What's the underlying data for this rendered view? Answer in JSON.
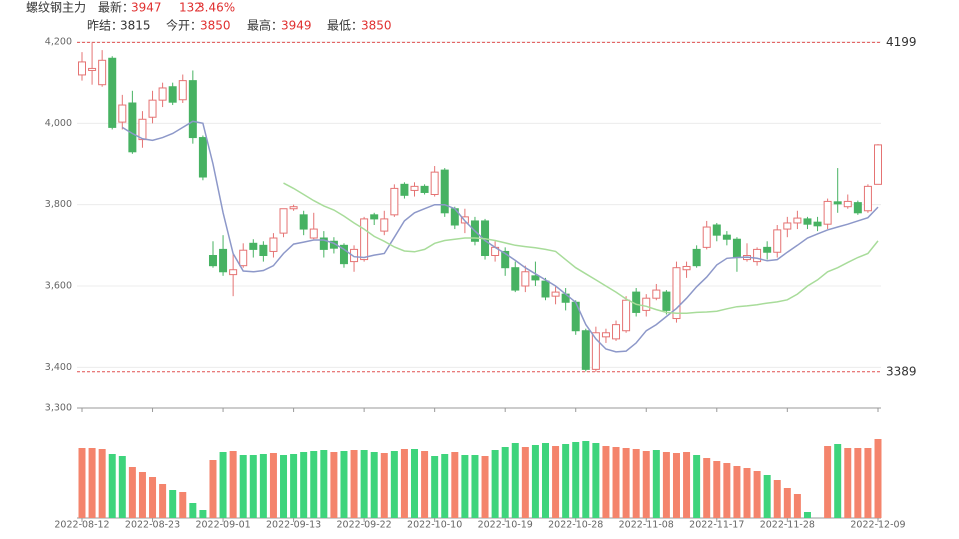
{
  "chart_data": {
    "type": "candlestick",
    "header": {
      "name": "螺纹钢主力",
      "latest_label": "最新：",
      "latest": 3947,
      "change": 132,
      "change_pct": {
        "value": 3.46,
        "label": "3.46%"
      },
      "prev_settle_label": "昨结：",
      "prev_settle": 3815,
      "open_label": "今开：",
      "open_today": 3850,
      "high_label": "最高：",
      "high_today": 3949,
      "low_label": "最低：",
      "low_today": 3850
    },
    "categories": [
      "2022-08-12",
      null,
      null,
      null,
      null,
      null,
      null,
      "2022-08-23",
      null,
      null,
      null,
      null,
      null,
      null,
      "2022-09-01",
      null,
      null,
      null,
      null,
      null,
      null,
      "2022-09-13",
      null,
      null,
      null,
      null,
      null,
      null,
      "2022-09-22",
      null,
      null,
      null,
      null,
      null,
      null,
      "2022-10-10",
      null,
      null,
      null,
      null,
      null,
      null,
      "2022-10-19",
      null,
      null,
      null,
      null,
      null,
      null,
      "2022-10-28",
      null,
      null,
      null,
      null,
      null,
      null,
      "2022-11-08",
      null,
      null,
      null,
      null,
      null,
      null,
      "2022-11-17",
      null,
      null,
      null,
      null,
      null,
      null,
      "2022-11-28",
      null,
      null,
      null,
      null,
      null,
      null,
      null,
      null,
      "2022-12-09"
    ],
    "open": [
      4119,
      4130,
      4095,
      4160,
      4003,
      4050,
      3960,
      4015,
      4057,
      4090,
      4058,
      4105,
      3965,
      3675,
      3690,
      3628,
      3650,
      3705,
      3700,
      3685,
      3730,
      3790,
      3775,
      3718,
      3718,
      3710,
      3700,
      3660,
      3665,
      3775,
      3735,
      3775,
      3850,
      3835,
      3845,
      3825,
      3885,
      3790,
      3755,
      3760,
      3760,
      3675,
      3685,
      3645,
      3600,
      3625,
      3612,
      3575,
      3580,
      3560,
      3490,
      3395,
      3475,
      3470,
      3490,
      3585,
      3540,
      3570,
      3585,
      3520,
      3640,
      3690,
      3695,
      3750,
      3725,
      3715,
      3665,
      3660,
      3695,
      3683,
      3740,
      3755,
      3765,
      3757,
      3752,
      3807,
      3795,
      3805,
      3785,
      3850
    ],
    "close": [
      4151,
      4135,
      4155,
      3990,
      4045,
      3930,
      4010,
      4057,
      4087,
      4052,
      4105,
      3965,
      3868,
      3650,
      3635,
      3640,
      3688,
      3690,
      3675,
      3718,
      3790,
      3795,
      3740,
      3740,
      3690,
      3693,
      3655,
      3690,
      3765,
      3765,
      3765,
      3840,
      3823,
      3845,
      3830,
      3880,
      3780,
      3750,
      3770,
      3710,
      3675,
      3695,
      3645,
      3590,
      3635,
      3615,
      3573,
      3585,
      3560,
      3490,
      3395,
      3485,
      3485,
      3505,
      3565,
      3535,
      3570,
      3590,
      3540,
      3645,
      3648,
      3650,
      3745,
      3725,
      3715,
      3670,
      3675,
      3690,
      3683,
      3738,
      3755,
      3767,
      3752,
      3748,
      3808,
      3802,
      3808,
      3780,
      3845,
      3947
    ],
    "high": [
      4175,
      4199,
      4180,
      4165,
      4070,
      4080,
      4030,
      4080,
      4100,
      4100,
      4120,
      4130,
      3970,
      3710,
      3725,
      3680,
      3705,
      3715,
      3710,
      3730,
      3790,
      3800,
      3785,
      3780,
      3735,
      3720,
      3705,
      3700,
      3770,
      3780,
      3785,
      3850,
      3855,
      3855,
      3850,
      3895,
      3890,
      3795,
      3790,
      3770,
      3765,
      3710,
      3695,
      3660,
      3650,
      3660,
      3620,
      3600,
      3595,
      3565,
      3495,
      3500,
      3495,
      3515,
      3575,
      3595,
      3580,
      3605,
      3590,
      3660,
      3660,
      3700,
      3760,
      3755,
      3735,
      3720,
      3705,
      3695,
      3710,
      3750,
      3770,
      3785,
      3770,
      3770,
      3815,
      3890,
      3825,
      3810,
      3850,
      3949
    ],
    "low": [
      4105,
      4095,
      4090,
      3985,
      3985,
      3925,
      3940,
      4000,
      4040,
      4045,
      4050,
      3950,
      3860,
      3645,
      3625,
      3575,
      3645,
      3670,
      3660,
      3670,
      3720,
      3785,
      3725,
      3715,
      3670,
      3680,
      3645,
      3635,
      3660,
      3750,
      3725,
      3770,
      3815,
      3820,
      3825,
      3820,
      3770,
      3740,
      3730,
      3700,
      3665,
      3660,
      3625,
      3585,
      3585,
      3600,
      3565,
      3555,
      3540,
      3480,
      3390,
      3389,
      3460,
      3465,
      3485,
      3525,
      3525,
      3565,
      3530,
      3510,
      3620,
      3645,
      3690,
      3710,
      3700,
      3635,
      3660,
      3650,
      3665,
      3670,
      3720,
      3740,
      3740,
      3735,
      3740,
      3780,
      3790,
      3775,
      3780,
      3850
    ],
    "up_color": "#e57373",
    "down_color": "#47b262",
    "ylim": [
      3300,
      4200
    ],
    "yticks": [
      {
        "value": 3300,
        "label": "3,300"
      },
      {
        "value": 3400,
        "label": "3,400"
      },
      {
        "value": 3600,
        "label": "3,600"
      },
      {
        "value": 3800,
        "label": "3,800"
      },
      {
        "value": 4000,
        "label": "4,000"
      },
      {
        "value": 4200,
        "label": "4,200"
      }
    ],
    "grid": true,
    "max_marker": 4199,
    "min_marker": 3389,
    "marker_color": "#e05050",
    "ma_series": [
      {
        "color": "#8d98c9",
        "values": [
          null,
          null,
          null,
          null,
          3990,
          3975,
          3962,
          3958,
          3965,
          3975,
          3990,
          4005,
          4000,
          3900,
          3780,
          3680,
          3637,
          3635,
          3638,
          3650,
          3680,
          3703,
          3708,
          3713,
          3713,
          3705,
          3690,
          3672,
          3670,
          3676,
          3680,
          3720,
          3760,
          3780,
          3790,
          3800,
          3800,
          3790,
          3760,
          3735,
          3712,
          3695,
          3680,
          3663,
          3645,
          3630,
          3615,
          3600,
          3580,
          3560,
          3505,
          3470,
          3445,
          3438,
          3440,
          3460,
          3490,
          3505,
          3525,
          3545,
          3570,
          3598,
          3622,
          3652,
          3668,
          3670,
          3671,
          3668,
          3662,
          3665,
          3683,
          3700,
          3718,
          3728,
          3738,
          3745,
          3752,
          3760,
          3768,
          3794
        ]
      },
      {
        "color": "#a8dc9a",
        "values": [
          null,
          null,
          null,
          null,
          null,
          null,
          null,
          null,
          null,
          null,
          null,
          null,
          null,
          null,
          null,
          null,
          null,
          null,
          null,
          null,
          3853,
          3840,
          3825,
          3810,
          3797,
          3787,
          3772,
          3755,
          3740,
          3722,
          3710,
          3696,
          3686,
          3684,
          3690,
          3705,
          3712,
          3715,
          3718,
          3718,
          3716,
          3712,
          3706,
          3700,
          3697,
          3694,
          3690,
          3685,
          3665,
          3645,
          3630,
          3615,
          3600,
          3585,
          3568,
          3555,
          3550,
          3542,
          3535,
          3533,
          3533,
          3535,
          3536,
          3538,
          3544,
          3549,
          3551,
          3554,
          3558,
          3561,
          3566,
          3580,
          3600,
          3615,
          3635,
          3645,
          3658,
          3670,
          3680,
          3711
        ]
      }
    ],
    "volume": {
      "ylim": [
        0,
        80
      ],
      "values": [
        70,
        70,
        69,
        64,
        62,
        51,
        46,
        41,
        34,
        28,
        26,
        15,
        8,
        58,
        66,
        67,
        63,
        63,
        64,
        65,
        63,
        64,
        66,
        67,
        68,
        66,
        67,
        68,
        68,
        66,
        65,
        67,
        69,
        69,
        67,
        62,
        64,
        66,
        63,
        63,
        62,
        68,
        71,
        75,
        71,
        73,
        75,
        72,
        74,
        76,
        77,
        75,
        72,
        71,
        70,
        69,
        67,
        68,
        66,
        65,
        66,
        63,
        60,
        57,
        55,
        52,
        50,
        47,
        43,
        38,
        30,
        24,
        6,
        null,
        72,
        74,
        70,
        70,
        70,
        79
      ],
      "colors": [
        "#f4846c",
        "#f4846c",
        "#f4846c",
        "#3ed47c",
        "#3ed47c",
        "#f4846c",
        "#f4846c",
        "#f4846c",
        "#f4846c",
        "#3ed47c",
        "#f4846c",
        "#3ed47c",
        "#3ed47c",
        "#f4846c",
        "#3ed47c",
        "#f4846c",
        "#3ed47c",
        "#3ed47c",
        "#3ed47c",
        "#f4846c",
        "#3ed47c",
        "#3ed47c",
        "#3ed47c",
        "#3ed47c",
        "#3ed47c",
        "#f4846c",
        "#3ed47c",
        "#f4846c",
        "#3ed47c",
        "#3ed47c",
        "#f4846c",
        "#3ed47c",
        "#f4846c",
        "#3ed47c",
        "#f4846c",
        "#3ed47c",
        "#3ed47c",
        "#f4846c",
        "#3ed47c",
        "#3ed47c",
        "#f4846c",
        "#3ed47c",
        "#3ed47c",
        "#3ed47c",
        "#f4846c",
        "#3ed47c",
        "#3ed47c",
        "#f4846c",
        "#3ed47c",
        "#3ed47c",
        "#3ed47c",
        "#3ed47c",
        "#f4846c",
        "#f4846c",
        "#f4846c",
        "#f4846c",
        "#f4846c",
        "#3ed47c",
        "#f4846c",
        "#f4846c",
        "#f4846c",
        "#3ed47c",
        "#f4846c",
        "#f4846c",
        "#f4846c",
        "#f4846c",
        "#f4846c",
        "#f4846c",
        "#3ed47c",
        "#f4846c",
        "#f4846c",
        "#f4846c",
        "#3ed47c",
        "#3ed47c",
        "#f4846c",
        "#3ed47c",
        "#f4846c",
        "#f4846c",
        "#f4846c",
        "#f4846c"
      ]
    }
  }
}
